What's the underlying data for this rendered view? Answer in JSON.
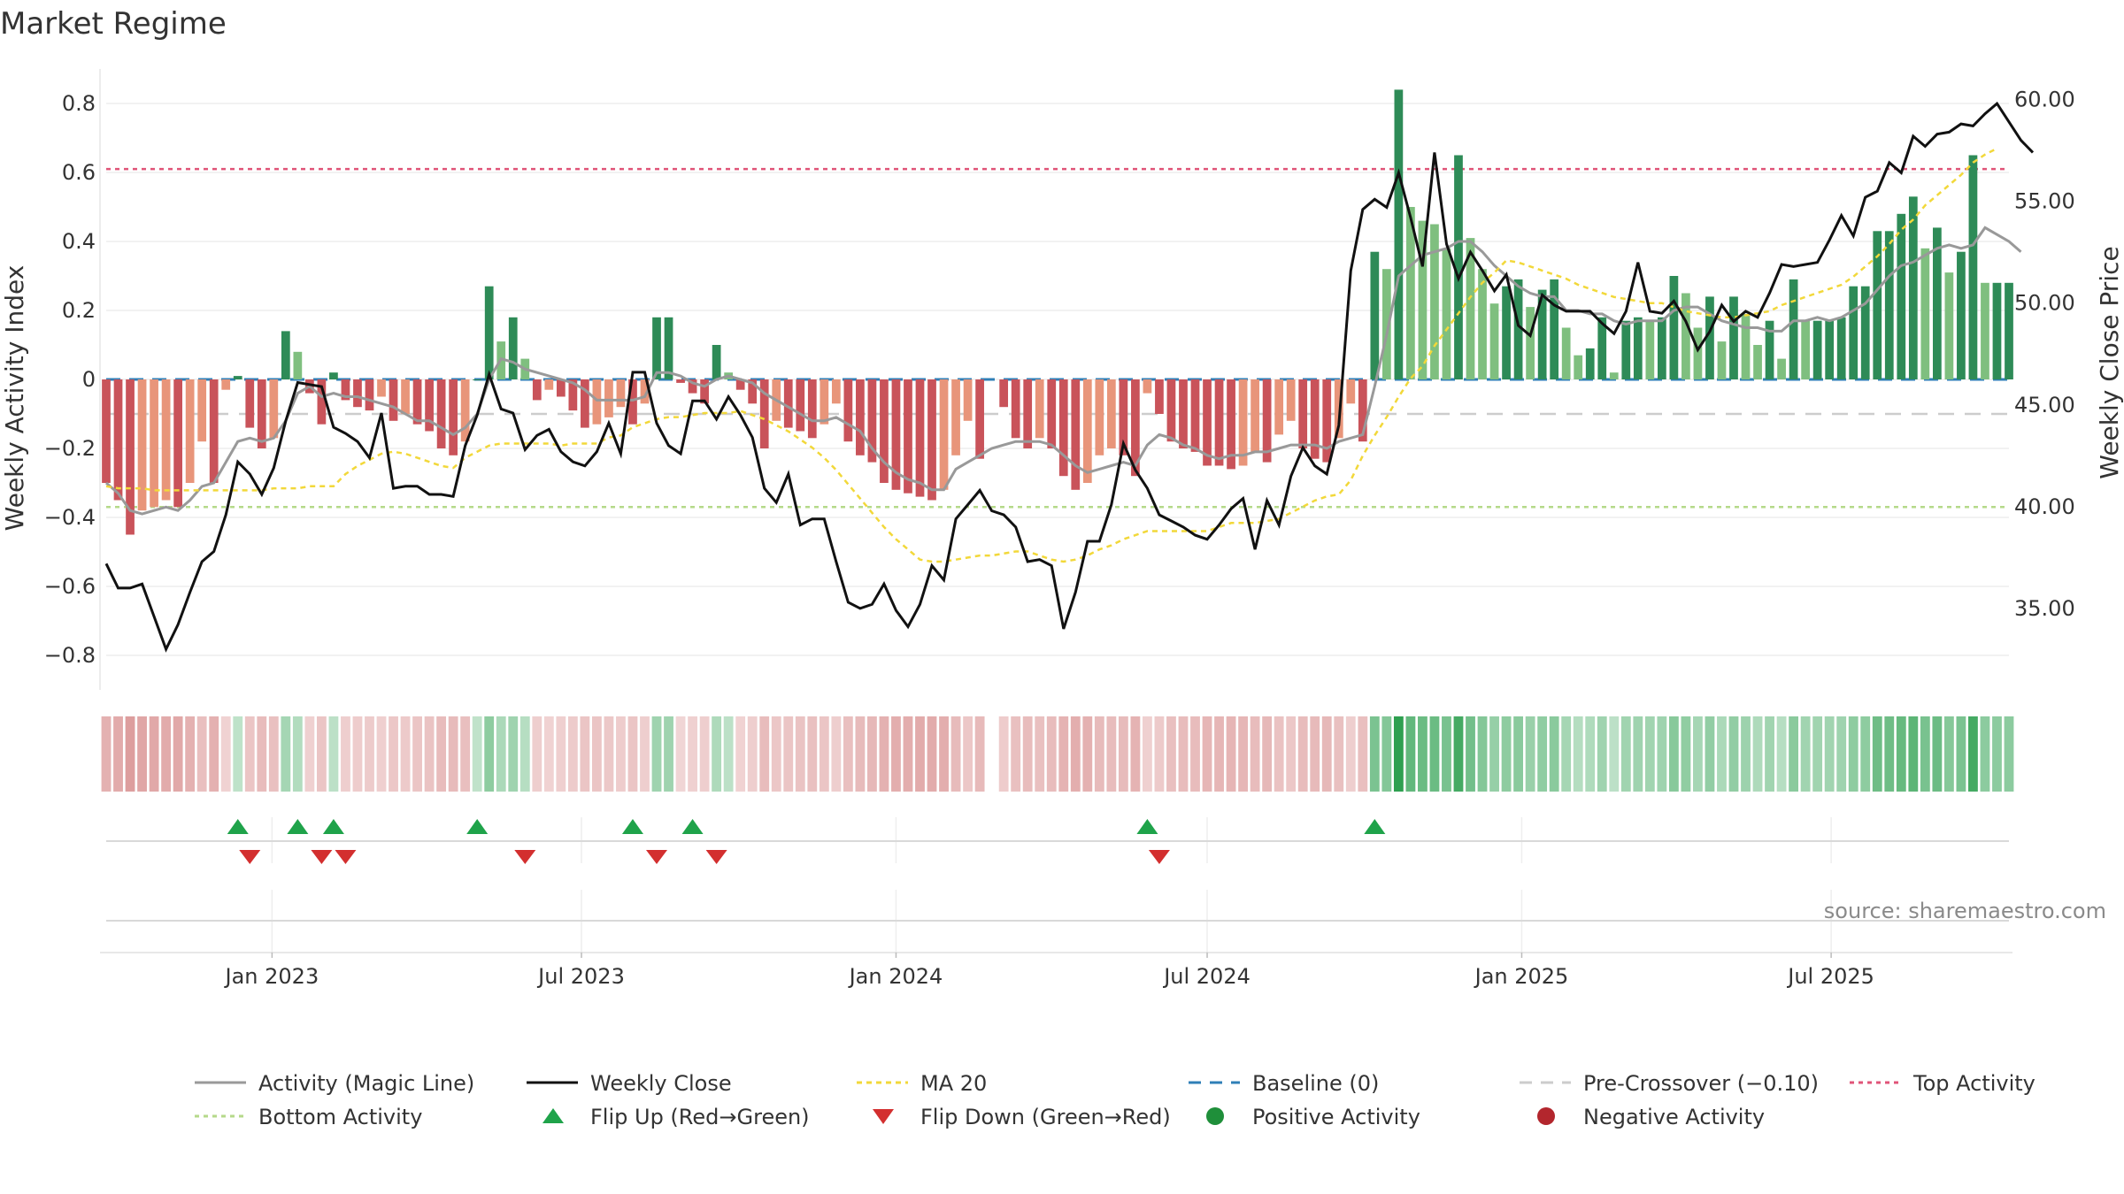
{
  "chart_data": {
    "title": "Market Regime",
    "source": "source: sharemaestro.com",
    "left_axis": {
      "label": "Weekly Activity Index",
      "ylim": [
        -0.9,
        0.9
      ],
      "ticks": [
        "0.8",
        "0.6",
        "0.4",
        "0.2",
        "0",
        "−0.2",
        "−0.4",
        "−0.6",
        "−0.8"
      ],
      "tick_values": [
        0.8,
        0.6,
        0.4,
        0.2,
        0,
        -0.2,
        -0.4,
        -0.6,
        -0.8
      ]
    },
    "right_axis": {
      "label": "Weekly Close Price",
      "ylim": [
        31.0,
        61.5
      ],
      "ticks": [
        "60.00",
        "55.00",
        "50.00",
        "45.00",
        "40.00",
        "35.00"
      ],
      "tick_values": [
        60,
        55,
        50,
        45,
        40,
        35
      ]
    },
    "x_axis": {
      "start": "2022-09-26",
      "step_days": 7,
      "ticks": [
        "Jan 2023",
        "Jul 2023",
        "Jan 2024",
        "Jul 2024",
        "Jan 2025",
        "Jul 2025"
      ],
      "tick_dates": [
        "2023-01-01",
        "2023-07-01",
        "2024-01-01",
        "2024-07-01",
        "2025-01-01",
        "2025-07-01"
      ]
    },
    "reference_lines": {
      "baseline": 0,
      "pre_crossover": -0.1,
      "top_activity": 0.61,
      "bottom_activity": -0.37
    },
    "activity": [
      -0.3,
      -0.35,
      -0.45,
      -0.38,
      -0.37,
      -0.35,
      -0.37,
      -0.3,
      -0.18,
      -0.3,
      -0.03,
      0.01,
      -0.14,
      -0.2,
      -0.17,
      0.14,
      0.08,
      -0.04,
      -0.13,
      0.02,
      -0.06,
      -0.08,
      -0.09,
      -0.05,
      -0.12,
      -0.1,
      -0.13,
      -0.15,
      -0.2,
      -0.22,
      -0.18,
      0.0,
      0.27,
      0.11,
      0.18,
      0.06,
      -0.06,
      -0.03,
      -0.05,
      -0.09,
      -0.14,
      -0.13,
      -0.11,
      -0.08,
      -0.13,
      -0.07,
      0.18,
      0.18,
      -0.01,
      -0.04,
      -0.07,
      0.1,
      0.02,
      -0.03,
      -0.07,
      -0.2,
      -0.12,
      -0.14,
      -0.15,
      -0.17,
      -0.13,
      -0.07,
      -0.18,
      -0.22,
      -0.24,
      -0.3,
      -0.32,
      -0.33,
      -0.34,
      -0.35,
      -0.32,
      -0.22,
      -0.12,
      -0.23,
      null,
      -0.08,
      -0.17,
      -0.2,
      -0.17,
      -0.2,
      -0.28,
      -0.32,
      -0.3,
      -0.22,
      -0.2,
      -0.22,
      -0.28,
      -0.04,
      -0.1,
      -0.18,
      -0.2,
      -0.21,
      -0.25,
      -0.25,
      -0.26,
      -0.25,
      -0.21,
      -0.24,
      -0.16,
      -0.12,
      -0.2,
      -0.23,
      -0.24,
      -0.17,
      -0.07,
      -0.18,
      0.37,
      0.32,
      0.84,
      0.5,
      0.46,
      0.45,
      0.38,
      0.65,
      0.41,
      0.32,
      0.22,
      0.27,
      0.29,
      0.21,
      0.26,
      0.29,
      0.15,
      0.07,
      0.09,
      0.18,
      0.02,
      0.17,
      0.18,
      0.17,
      0.18,
      0.3,
      0.25,
      0.15,
      0.24,
      0.11,
      0.24,
      0.19,
      0.1,
      0.17,
      0.06,
      0.29,
      0.17,
      0.17,
      0.17,
      0.18,
      0.27,
      0.27,
      0.43,
      0.43,
      0.48,
      0.53,
      0.38,
      0.44,
      0.31,
      0.37,
      0.65,
      0.28,
      0.28,
      0.28
    ],
    "magic_line": [
      -0.3,
      -0.33,
      -0.38,
      -0.39,
      -0.38,
      -0.37,
      -0.38,
      -0.35,
      -0.31,
      -0.3,
      -0.24,
      -0.18,
      -0.17,
      -0.18,
      -0.17,
      -0.12,
      -0.04,
      -0.02,
      -0.05,
      -0.04,
      -0.05,
      -0.05,
      -0.06,
      -0.07,
      -0.08,
      -0.1,
      -0.12,
      -0.12,
      -0.14,
      -0.16,
      -0.14,
      -0.1,
      0.0,
      0.06,
      0.05,
      0.03,
      0.02,
      0.01,
      0.0,
      -0.01,
      -0.03,
      -0.06,
      -0.06,
      -0.06,
      -0.06,
      -0.05,
      0.02,
      0.02,
      0.01,
      -0.01,
      -0.02,
      0.0,
      0.01,
      0.0,
      -0.01,
      -0.04,
      -0.06,
      -0.08,
      -0.1,
      -0.12,
      -0.12,
      -0.11,
      -0.13,
      -0.15,
      -0.2,
      -0.24,
      -0.27,
      -0.29,
      -0.3,
      -0.32,
      -0.32,
      -0.26,
      -0.24,
      -0.22,
      -0.2,
      -0.19,
      -0.18,
      -0.18,
      -0.18,
      -0.19,
      -0.22,
      -0.25,
      -0.27,
      -0.26,
      -0.25,
      -0.24,
      -0.25,
      -0.19,
      -0.16,
      -0.17,
      -0.19,
      -0.2,
      -0.22,
      -0.23,
      -0.22,
      -0.22,
      -0.21,
      -0.21,
      -0.2,
      -0.19,
      -0.19,
      -0.19,
      -0.2,
      -0.18,
      -0.17,
      -0.16,
      -0.02,
      0.13,
      0.3,
      0.33,
      0.36,
      0.37,
      0.38,
      0.4,
      0.4,
      0.37,
      0.33,
      0.3,
      0.27,
      0.25,
      0.24,
      0.24,
      0.2,
      0.2,
      0.19,
      0.19,
      0.17,
      0.16,
      0.17,
      0.17,
      0.17,
      0.2,
      0.21,
      0.21,
      0.19,
      0.17,
      0.16,
      0.15,
      0.15,
      0.14,
      0.14,
      0.17,
      0.17,
      0.18,
      0.17,
      0.18,
      0.2,
      0.22,
      0.26,
      0.3,
      0.33,
      0.34,
      0.36,
      0.38,
      0.39,
      0.38,
      0.39,
      0.44,
      0.42,
      0.4,
      0.37
    ],
    "weekly_close": [
      37.2,
      36.0,
      36.0,
      36.2,
      34.6,
      33.0,
      34.2,
      35.8,
      37.3,
      37.8,
      39.6,
      42.2,
      41.6,
      40.6,
      41.9,
      44.2,
      46.1,
      46.0,
      45.9,
      43.9,
      43.6,
      43.2,
      42.4,
      44.6,
      40.9,
      41.0,
      41.0,
      40.6,
      40.6,
      40.5,
      43.0,
      44.5,
      46.5,
      44.8,
      44.6,
      42.8,
      43.5,
      43.8,
      42.7,
      42.2,
      42.0,
      42.7,
      44.1,
      42.6,
      46.6,
      46.6,
      44.1,
      43.0,
      42.6,
      45.2,
      45.2,
      44.3,
      45.4,
      44.5,
      43.4,
      40.9,
      40.2,
      41.6,
      39.1,
      39.4,
      39.4,
      37.3,
      35.3,
      35.0,
      35.2,
      36.2,
      34.9,
      34.1,
      35.2,
      37.1,
      36.4,
      39.4,
      40.1,
      40.8,
      39.8,
      39.6,
      39.0,
      37.3,
      37.4,
      37.1,
      34.0,
      35.8,
      38.3,
      38.3,
      40.1,
      43.1,
      41.8,
      40.9,
      39.6,
      39.3,
      39.0,
      38.6,
      38.4,
      39.1,
      39.9,
      40.4,
      37.9,
      40.3,
      39.1,
      41.5,
      42.9,
      42.0,
      41.6,
      44.0,
      51.6,
      54.6,
      55.1,
      54.7,
      56.4,
      54.2,
      51.8,
      57.4,
      52.9,
      51.2,
      52.5,
      51.6,
      50.6,
      51.4,
      48.9,
      48.4,
      50.4,
      49.9,
      49.6,
      49.6,
      49.6,
      49.0,
      48.5,
      49.6,
      52.0,
      49.6,
      49.5,
      50.1,
      49.1,
      47.7,
      48.6,
      49.9,
      49.1,
      49.6,
      49.3,
      50.5,
      51.9,
      51.8,
      51.9,
      52.0,
      53.1,
      54.3,
      53.3,
      55.2,
      55.5,
      56.9,
      56.4,
      58.2,
      57.7,
      58.3,
      58.4,
      58.8,
      58.7,
      59.3,
      59.8,
      58.9,
      58.0,
      57.4
    ],
    "ma20": [
      41.0,
      40.9,
      40.9,
      40.9,
      40.8,
      40.8,
      40.8,
      40.8,
      40.8,
      40.8,
      40.8,
      40.8,
      40.8,
      40.8,
      40.9,
      40.9,
      40.9,
      41.0,
      41.0,
      41.0,
      41.6,
      42.0,
      42.3,
      42.6,
      42.7,
      42.6,
      42.4,
      42.2,
      42.0,
      41.9,
      42.4,
      42.7,
      43.0,
      43.1,
      43.1,
      43.1,
      43.1,
      43.1,
      43.0,
      43.1,
      43.1,
      43.1,
      43.4,
      43.5,
      43.9,
      44.1,
      44.3,
      44.4,
      44.4,
      44.5,
      44.6,
      44.6,
      44.6,
      44.7,
      44.5,
      44.3,
      44.0,
      43.7,
      43.3,
      42.9,
      42.4,
      41.8,
      41.1,
      40.4,
      39.7,
      39.0,
      38.4,
      37.9,
      37.4,
      37.3,
      37.3,
      37.4,
      37.5,
      37.6,
      37.6,
      37.7,
      37.8,
      37.8,
      37.6,
      37.4,
      37.3,
      37.4,
      37.6,
      37.9,
      38.1,
      38.4,
      38.6,
      38.8,
      38.8,
      38.8,
      38.8,
      38.8,
      38.8,
      39.0,
      39.2,
      39.2,
      39.2,
      39.3,
      39.4,
      39.7,
      40.0,
      40.3,
      40.5,
      40.6,
      41.3,
      42.5,
      43.5,
      44.4,
      45.4,
      46.3,
      46.9,
      47.9,
      48.7,
      49.5,
      50.3,
      51.0,
      51.5,
      52.1,
      52.0,
      51.8,
      51.6,
      51.4,
      51.2,
      50.9,
      50.7,
      50.5,
      50.3,
      50.2,
      50.1,
      50.0,
      50.0,
      49.8,
      49.6,
      49.5,
      49.4,
      49.3,
      49.3,
      49.4,
      49.5,
      49.6,
      49.9,
      50.1,
      50.3,
      50.5,
      50.7,
      50.9,
      51.3,
      51.8,
      52.3,
      52.9,
      53.6,
      54.1,
      54.8,
      55.3,
      55.8,
      56.3,
      56.9,
      57.3,
      57.6
    ],
    "flip_up_weeks": [
      11,
      16,
      19,
      31,
      44,
      49,
      87,
      106
    ],
    "flip_down_weeks": [
      12,
      18,
      20,
      35,
      46,
      51,
      88
    ],
    "legend": [
      {
        "label": "Activity (Magic Line)",
        "kind": "line",
        "color": "#999999",
        "dash": ""
      },
      {
        "label": "Weekly Close",
        "kind": "line",
        "color": "#111111",
        "dash": ""
      },
      {
        "label": "MA 20",
        "kind": "line",
        "color": "#f2d83a",
        "dash": "6,5"
      },
      {
        "label": "Baseline (0)",
        "kind": "line",
        "color": "#2f7fb7",
        "dash": "14,10"
      },
      {
        "label": "Pre-Crossover (−0.10)",
        "kind": "line",
        "color": "#cccccc",
        "dash": "14,10"
      },
      {
        "label": "Top Activity",
        "kind": "line",
        "color": "#e05478",
        "dash": "5,5"
      },
      {
        "label": "Bottom Activity",
        "kind": "line",
        "color": "#b5d98a",
        "dash": "5,5"
      },
      {
        "label": "Flip Up (Red→Green)",
        "kind": "tri-up",
        "color": "#1fa34a"
      },
      {
        "label": "Flip Down (Green→Red)",
        "kind": "tri-down",
        "color": "#d32f2f"
      },
      {
        "label": "Positive Activity",
        "kind": "dot",
        "color": "#1f8f3a"
      },
      {
        "label": "Negative Activity",
        "kind": "dot",
        "color": "#b3262d"
      }
    ],
    "colors": {
      "pos_strong": "#2e8b57",
      "pos_weak": "#7fbf7f",
      "neg_strong": "#c9535a",
      "neg_weak": "#e8957a",
      "grid": "#eeeeee",
      "axis": "#cccccc"
    }
  }
}
